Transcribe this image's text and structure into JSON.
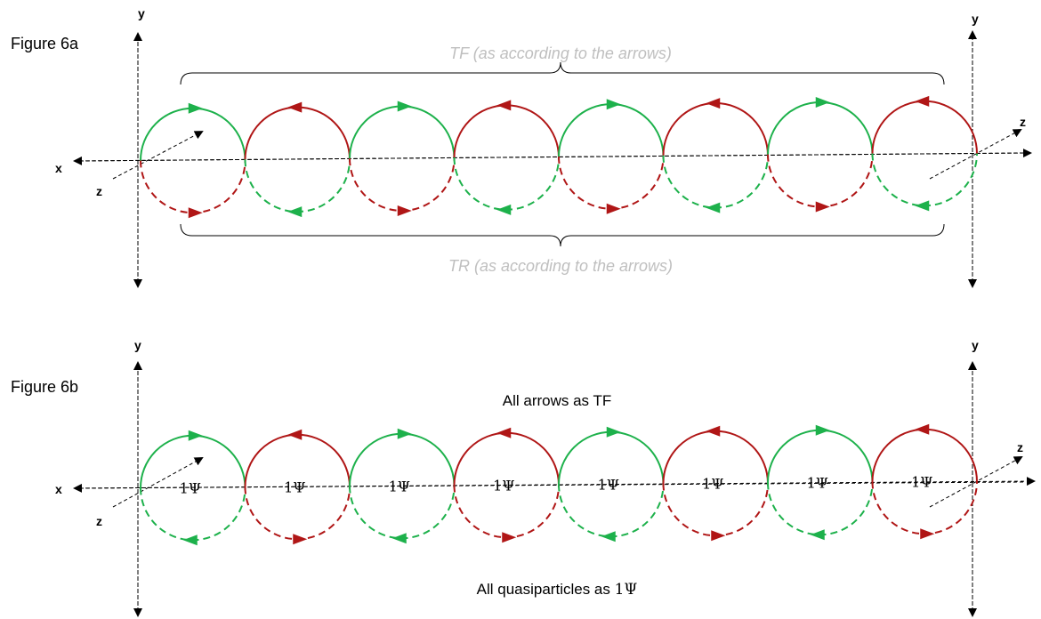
{
  "figure_a": {
    "title": "Figure 6a",
    "top_caption": "TF (as according to the arrows)",
    "bottom_caption": "TR (as according to the arrows)"
  },
  "figure_b": {
    "title": "Figure 6b",
    "top_caption": "All arrows as TF",
    "bottom_caption_text": "All quasiparticles as ",
    "bottom_caption_symbol": "1Ψ",
    "circle_label": "1Ψ"
  },
  "axis_labels": {
    "x": "x",
    "y": "y",
    "z": "z"
  },
  "colors": {
    "green": "#1db14b",
    "red": "#b01616",
    "axis": "#000000",
    "caption_gray": "#bfbfbf"
  },
  "circle_count": 8,
  "circle_colors": [
    "green",
    "red",
    "green",
    "red",
    "green",
    "red",
    "green",
    "red"
  ],
  "figure_a_lower_arrow_colors": [
    "red",
    "green",
    "red",
    "green",
    "red",
    "green",
    "red",
    "green"
  ],
  "figure_b_lower_arrow_colors": [
    "green",
    "red",
    "green",
    "red",
    "green",
    "red",
    "green",
    "red"
  ]
}
